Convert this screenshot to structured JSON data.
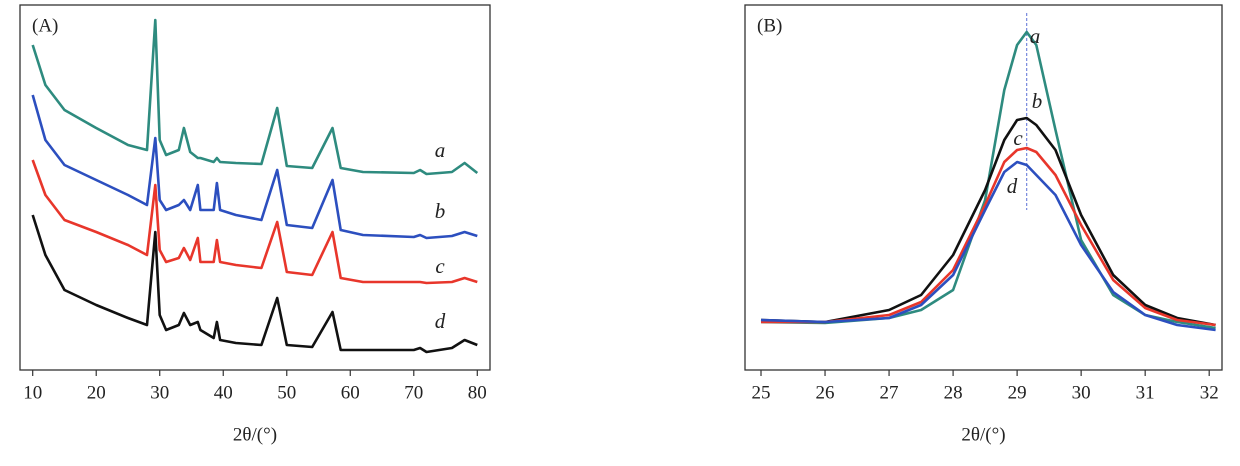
{
  "chart_data": [
    {
      "type": "line",
      "title": "(A)",
      "xlabel": "2θ/(°)",
      "x": [
        10,
        12,
        15,
        20,
        25,
        28,
        29.3,
        30,
        31,
        33,
        33.8,
        34.8,
        36,
        36.4,
        38.5,
        39,
        39.5,
        42,
        46,
        48.5,
        50,
        54,
        57.2,
        58.5,
        62,
        70,
        71,
        72,
        76,
        78,
        80
      ],
      "series": [
        {
          "name": "a",
          "color": "#2e8b7f",
          "values": [
            325,
            285,
            260,
            242,
            225,
            220,
            350,
            230,
            215,
            220,
            242,
            218,
            212,
            212,
            208,
            212,
            208,
            207,
            206,
            262,
            204,
            202,
            242,
            202,
            198,
            197,
            200,
            196,
            198,
            207,
            197
          ]
        },
        {
          "name": "b",
          "color": "#2c4fbf",
          "values": [
            275,
            230,
            205,
            190,
            175,
            165,
            232,
            170,
            160,
            165,
            170,
            160,
            185,
            160,
            160,
            187,
            160,
            155,
            150,
            200,
            145,
            142,
            190,
            140,
            135,
            133,
            135,
            132,
            134,
            138,
            134
          ]
        },
        {
          "name": "c",
          "color": "#e8362b",
          "values": [
            210,
            175,
            150,
            138,
            125,
            115,
            185,
            120,
            108,
            112,
            122,
            110,
            132,
            108,
            108,
            130,
            108,
            105,
            102,
            148,
            98,
            95,
            138,
            92,
            88,
            88,
            88,
            87,
            88,
            92,
            88
          ]
        },
        {
          "name": "d",
          "color": "#111111",
          "values": [
            155,
            115,
            80,
            65,
            52,
            45,
            138,
            55,
            40,
            45,
            57,
            45,
            48,
            40,
            32,
            48,
            30,
            27,
            25,
            72,
            25,
            23,
            58,
            20,
            20,
            20,
            22,
            18,
            22,
            30,
            25
          ]
        }
      ],
      "xlim": [
        8,
        82
      ],
      "xticks": [
        10,
        20,
        30,
        40,
        50,
        60,
        70,
        80
      ],
      "ylim": [
        0,
        365
      ]
    },
    {
      "type": "line",
      "title": "(B)",
      "xlabel": "2θ/(°)",
      "x": [
        25,
        26,
        27,
        27.5,
        28,
        28.5,
        28.8,
        29,
        29.15,
        29.3,
        29.6,
        30,
        30.5,
        31,
        31.5,
        32.1
      ],
      "series": [
        {
          "name": "a",
          "color": "#2e8b7f",
          "values": [
            48,
            47,
            52,
            60,
            80,
            170,
            280,
            325,
            338,
            325,
            240,
            130,
            75,
            55,
            48,
            42
          ]
        },
        {
          "name": "b",
          "color": "#111111",
          "values": [
            50,
            48,
            60,
            75,
            115,
            180,
            230,
            250,
            252,
            245,
            220,
            155,
            95,
            65,
            52,
            45
          ]
        },
        {
          "name": "c",
          "color": "#e8362b",
          "values": [
            48,
            48,
            55,
            68,
            100,
            165,
            208,
            220,
            222,
            218,
            195,
            145,
            90,
            62,
            50,
            45
          ]
        },
        {
          "name": "d",
          "color": "#2c4fbf",
          "values": [
            50,
            48,
            52,
            65,
            95,
            160,
            198,
            208,
            205,
            195,
            175,
            125,
            78,
            55,
            45,
            40
          ]
        }
      ],
      "vline": 29.15,
      "xlim": [
        24.75,
        32.2
      ],
      "xticks": [
        25,
        26,
        27,
        28,
        29,
        30,
        31,
        32
      ],
      "ylim": [
        0,
        365
      ]
    }
  ]
}
